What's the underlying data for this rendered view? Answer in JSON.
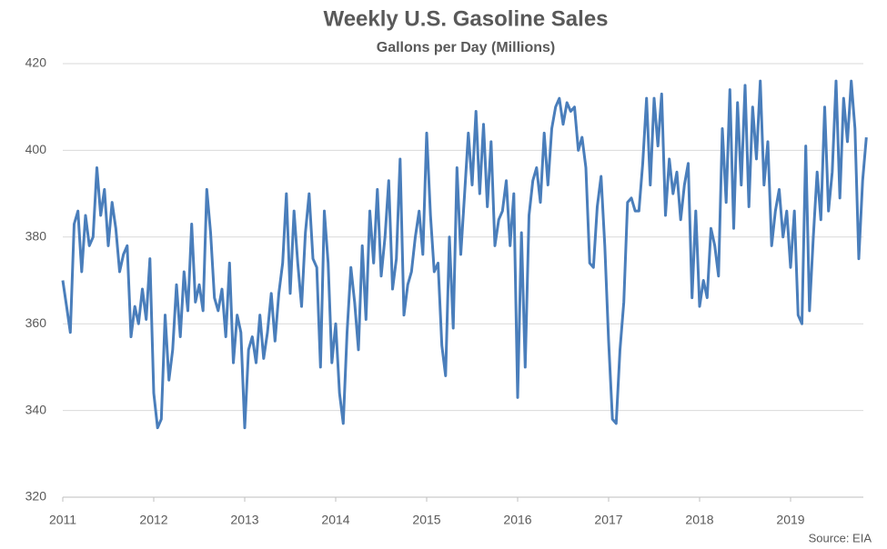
{
  "chart_data": {
    "type": "line",
    "title": "Weekly U.S. Gasoline Sales",
    "subtitle": "Gallons per Day (Millions)",
    "source": "Source: EIA",
    "x": [
      2011,
      2011.042,
      2011.083,
      2011.125,
      2011.167,
      2011.208,
      2011.25,
      2011.292,
      2011.333,
      2011.375,
      2011.417,
      2011.458,
      2011.5,
      2011.542,
      2011.583,
      2011.625,
      2011.667,
      2011.708,
      2011.75,
      2011.792,
      2011.833,
      2011.875,
      2011.917,
      2011.958,
      2012,
      2012.042,
      2012.083,
      2012.125,
      2012.167,
      2012.208,
      2012.25,
      2012.292,
      2012.333,
      2012.375,
      2012.417,
      2012.458,
      2012.5,
      2012.542,
      2012.583,
      2012.625,
      2012.667,
      2012.708,
      2012.75,
      2012.792,
      2012.833,
      2012.875,
      2012.917,
      2012.958,
      2013,
      2013.042,
      2013.083,
      2013.125,
      2013.167,
      2013.208,
      2013.25,
      2013.292,
      2013.333,
      2013.375,
      2013.417,
      2013.458,
      2013.5,
      2013.542,
      2013.583,
      2013.625,
      2013.667,
      2013.708,
      2013.75,
      2013.792,
      2013.833,
      2013.875,
      2013.917,
      2013.958,
      2014,
      2014.042,
      2014.083,
      2014.125,
      2014.167,
      2014.208,
      2014.25,
      2014.292,
      2014.333,
      2014.375,
      2014.417,
      2014.458,
      2014.5,
      2014.542,
      2014.583,
      2014.625,
      2014.667,
      2014.708,
      2014.75,
      2014.792,
      2014.833,
      2014.875,
      2014.917,
      2014.958,
      2015,
      2015.042,
      2015.083,
      2015.125,
      2015.167,
      2015.208,
      2015.25,
      2015.292,
      2015.333,
      2015.375,
      2015.417,
      2015.458,
      2015.5,
      2015.542,
      2015.583,
      2015.625,
      2015.667,
      2015.708,
      2015.75,
      2015.792,
      2015.833,
      2015.875,
      2015.917,
      2015.958,
      2016,
      2016.042,
      2016.083,
      2016.125,
      2016.167,
      2016.208,
      2016.25,
      2016.292,
      2016.333,
      2016.375,
      2016.417,
      2016.458,
      2016.5,
      2016.542,
      2016.583,
      2016.625,
      2016.667,
      2016.708,
      2016.75,
      2016.792,
      2016.833,
      2016.875,
      2016.917,
      2016.958,
      2017,
      2017.042,
      2017.083,
      2017.125,
      2017.167,
      2017.208,
      2017.25,
      2017.292,
      2017.333,
      2017.375,
      2017.417,
      2017.458,
      2017.5,
      2017.542,
      2017.583,
      2017.625,
      2017.667,
      2017.708,
      2017.75,
      2017.792,
      2017.833,
      2017.875,
      2017.917,
      2017.958,
      2018,
      2018.042,
      2018.083,
      2018.125,
      2018.167,
      2018.208,
      2018.25,
      2018.292,
      2018.333,
      2018.375,
      2018.417,
      2018.458,
      2018.5,
      2018.542,
      2018.583,
      2018.625,
      2018.667,
      2018.708,
      2018.75,
      2018.792,
      2018.833,
      2018.875,
      2018.917,
      2018.958,
      2019,
      2019.042,
      2019.083,
      2019.125,
      2019.167,
      2019.208,
      2019.25,
      2019.292,
      2019.333,
      2019.375,
      2019.417,
      2019.458,
      2019.5,
      2019.542,
      2019.583,
      2019.625,
      2019.667,
      2019.708,
      2019.75,
      2019.792,
      2019.833
    ],
    "series": [
      {
        "color": "#4a7ebb",
        "values": [
          370,
          364,
          358,
          383,
          386,
          372,
          385,
          378,
          380,
          396,
          385,
          391,
          378,
          388,
          382,
          372,
          376,
          378,
          357,
          364,
          360,
          368,
          361,
          375,
          344,
          336,
          338,
          362,
          347,
          354,
          369,
          357,
          372,
          363,
          383,
          365,
          369,
          363,
          391,
          381,
          366,
          363,
          368,
          357,
          374,
          351,
          362,
          358,
          336,
          354,
          357,
          351,
          362,
          352,
          358,
          367,
          356,
          367,
          374,
          390,
          367,
          386,
          374,
          364,
          381,
          390,
          375,
          373,
          350,
          386,
          374,
          351,
          360,
          344,
          337,
          358,
          373,
          365,
          354,
          378,
          361,
          386,
          374,
          391,
          371,
          380,
          393,
          368,
          375,
          398,
          362,
          369,
          372,
          380,
          386,
          376,
          404,
          385,
          372,
          374,
          355,
          348,
          380,
          359,
          396,
          376,
          390,
          404,
          392,
          409,
          390,
          406,
          387,
          402,
          378,
          384,
          386,
          393,
          378,
          390,
          343,
          381,
          350,
          385,
          393,
          396,
          388,
          404,
          392,
          405,
          410,
          412,
          406,
          411,
          409,
          410,
          400,
          403,
          396,
          374,
          373,
          387,
          394,
          378,
          356,
          338,
          337,
          354,
          365,
          388,
          389,
          386,
          386,
          397,
          412,
          392,
          412,
          401,
          413,
          385,
          398,
          390,
          395,
          384,
          392,
          397,
          366,
          386,
          364,
          370,
          366,
          382,
          378,
          371,
          405,
          388,
          414,
          382,
          411,
          392,
          415,
          387,
          410,
          398,
          416,
          392,
          402,
          378,
          386,
          391,
          380,
          386,
          373,
          386,
          362,
          360,
          401,
          363,
          380,
          395,
          384,
          410,
          386,
          395,
          416,
          389,
          412,
          402,
          416,
          405,
          375,
          393,
          403
        ]
      }
    ],
    "xlim": [
      2011,
      2019.8
    ],
    "xticks": [
      2011,
      2012,
      2013,
      2014,
      2015,
      2016,
      2017,
      2018,
      2019
    ],
    "ylim": [
      320,
      420
    ],
    "yticks": [
      320,
      340,
      360,
      380,
      400,
      420
    ],
    "grid": true
  }
}
